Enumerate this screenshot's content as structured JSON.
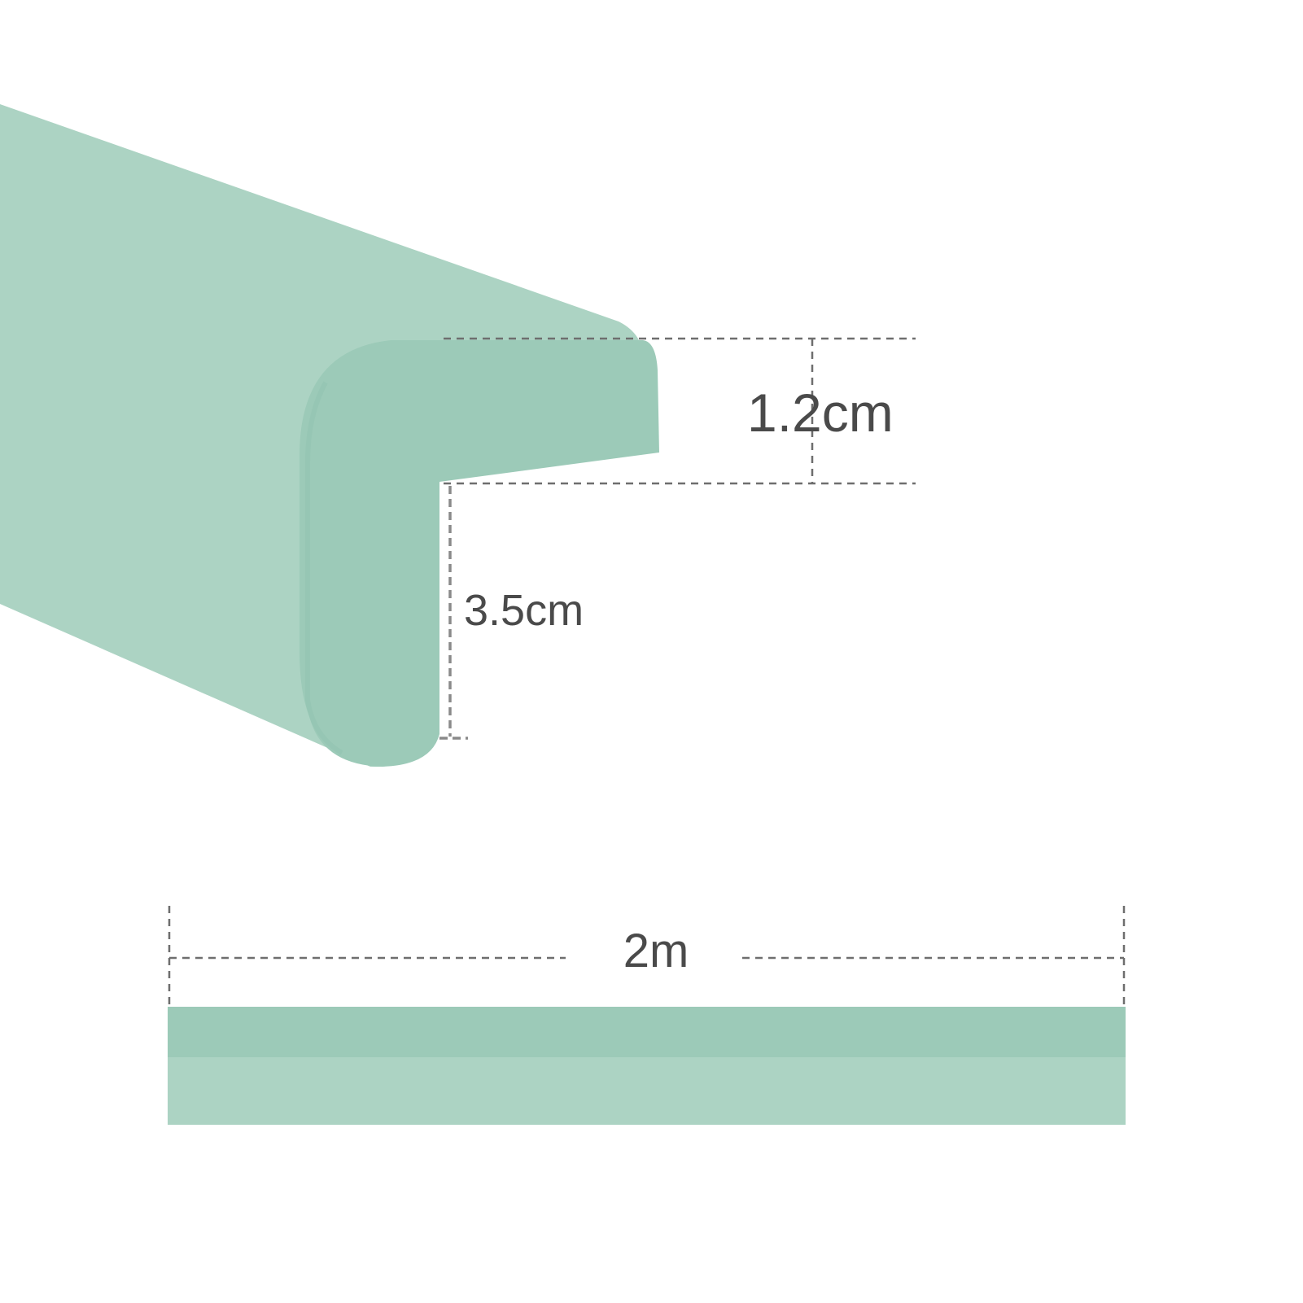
{
  "colors": {
    "background": "#ffffff",
    "strip_light": "#acd3c3",
    "strip_main": "#9ccab8",
    "strip_dark": "#95c6b2",
    "dimension_line": "#6e6e6e",
    "label_text": "#4a4a4a"
  },
  "dimensions": {
    "thickness_label": "1.2cm",
    "flange_label": "3.5cm",
    "length_label": "2m"
  }
}
